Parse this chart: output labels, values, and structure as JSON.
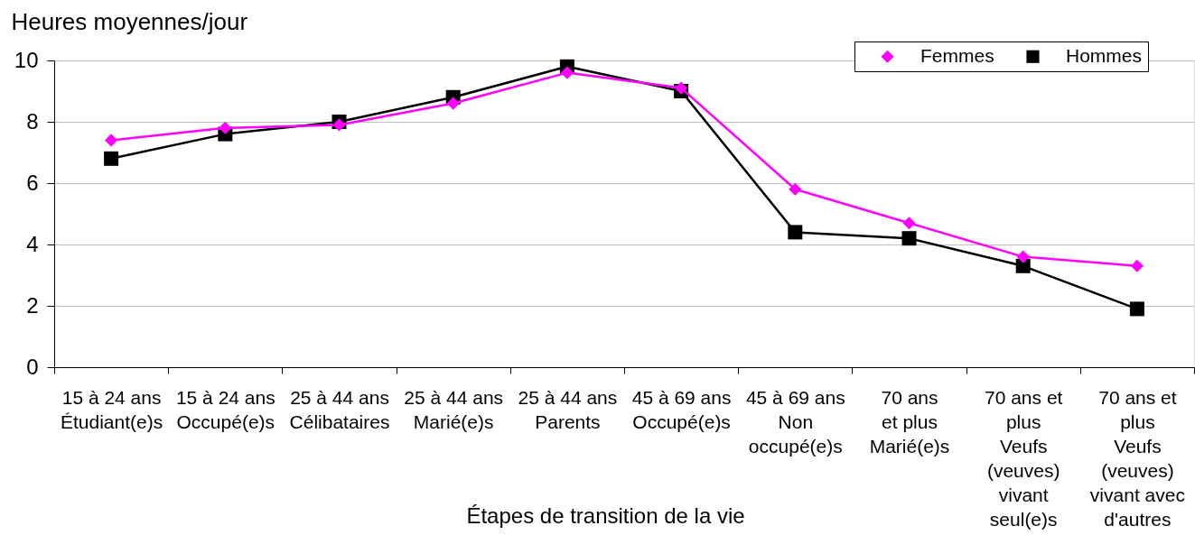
{
  "chart_data": {
    "type": "line",
    "ylabel": "Heures moyennes/jour",
    "xlabel": "Étapes de transition de la vie",
    "categories": [
      "15 à 24 ans\nÉtudiant(e)s",
      "15 à 24 ans\nOccupé(e)s",
      "25 à 44 ans\nCélibataires",
      "25 à 44 ans\nMarié(e)s",
      "25 à 44 ans\nParents",
      "45 à 69 ans\nOccupé(e)s",
      "45 à 69 ans\nNon\noccupé(e)s",
      "70 ans\net plus\nMarié(e)s",
      "70 ans et\nplus\nVeufs\n(veuves)\nvivant\nseul(e)s",
      "70 ans et\nplus\nVeufs\n(veuves)\nvivant avec\nd'autres"
    ],
    "series": [
      {
        "name": "Femmes",
        "color": "#ff00ff",
        "marker": "diamond",
        "values": [
          7.4,
          7.8,
          7.9,
          8.6,
          9.6,
          9.1,
          5.8,
          4.7,
          3.6,
          3.3
        ]
      },
      {
        "name": "Hommes",
        "color": "#000000",
        "marker": "square",
        "values": [
          6.8,
          7.6,
          8.0,
          8.8,
          9.8,
          9.0,
          4.4,
          4.2,
          3.3,
          1.9
        ]
      }
    ],
    "ylim": [
      0,
      10
    ],
    "yticks": [
      0,
      2,
      4,
      6,
      8,
      10
    ],
    "grid": "y",
    "legend": "top right",
    "line_style": "solid"
  }
}
